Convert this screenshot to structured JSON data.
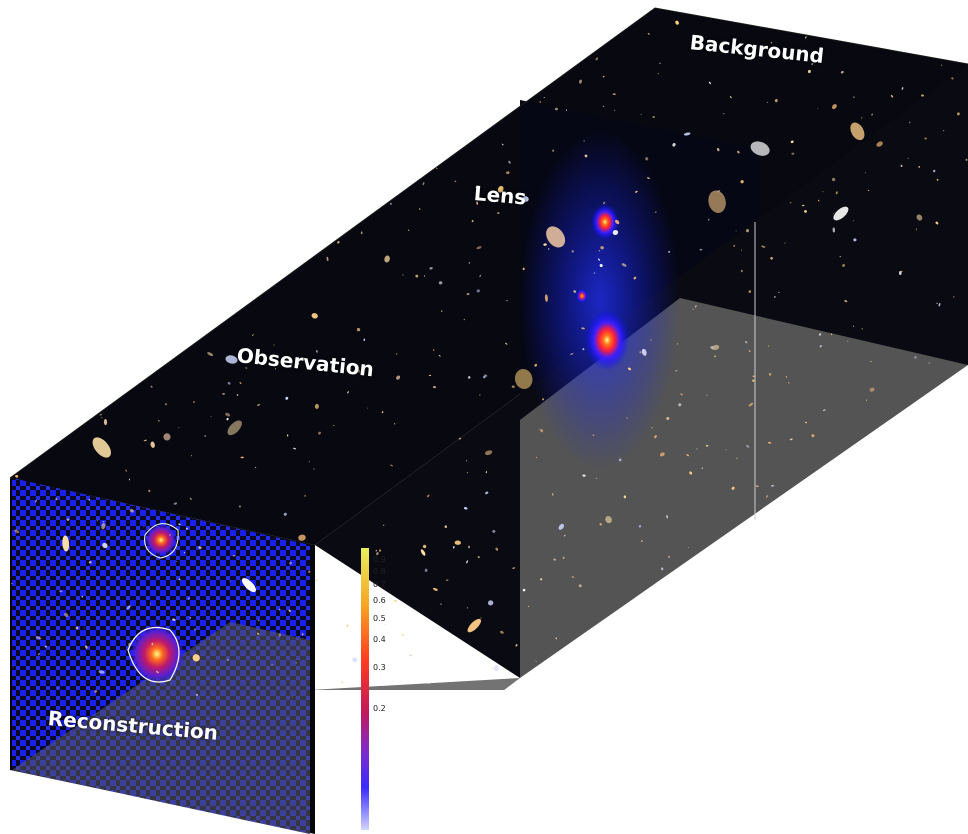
{
  "labels": {
    "background": "Background",
    "lens": "Lens",
    "observation": "Observation",
    "reconstruction": "Reconstruction"
  },
  "colorbar": {
    "ticks": [
      "0.9",
      "0.8",
      "0.7",
      "0.6",
      "0.5",
      "0.4",
      "0.3",
      "0.2"
    ],
    "colormap": [
      "#e8ef60",
      "#f5a623",
      "#ff3b1f",
      "#c2185b",
      "#7e2cc9",
      "#3a2bff",
      "#0000ff"
    ]
  },
  "colors": {
    "space": "#05060a",
    "floor": "#5a5a5a",
    "lens_mass": "#1f3bff",
    "heat_hot": "#fff06a"
  }
}
